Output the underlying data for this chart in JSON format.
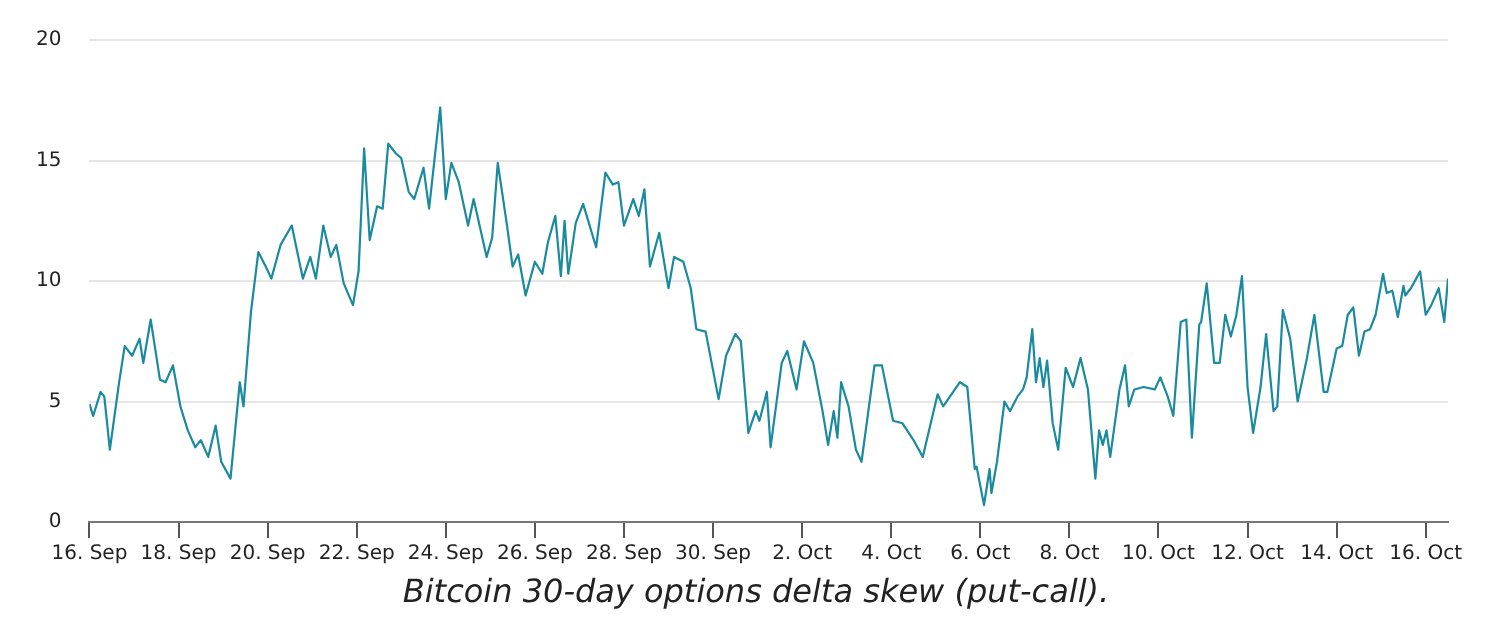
{
  "chart_data": {
    "type": "line",
    "annotations": [
      "Bitcoin 30-day options delta skew (put-call)."
    ],
    "xlim": [
      "--09-16T00:00",
      "--10-16T12:00"
    ],
    "xticks": [
      {
        "value": "--09-16T00:00",
        "label": "16. Sep"
      },
      {
        "value": "--09-18T00:00",
        "label": "18. Sep"
      },
      {
        "value": "--09-20T00:00",
        "label": "20. Sep"
      },
      {
        "value": "--09-22T00:00",
        "label": "22. Sep"
      },
      {
        "value": "--09-24T00:00",
        "label": "24. Sep"
      },
      {
        "value": "--09-26T00:00",
        "label": "26. Sep"
      },
      {
        "value": "--09-28T00:00",
        "label": "28. Sep"
      },
      {
        "value": "--09-30T00:00",
        "label": "30. Sep"
      },
      {
        "value": "--10-02T00:00",
        "label": "2. Oct"
      },
      {
        "value": "--10-04T00:00",
        "label": "4. Oct"
      },
      {
        "value": "--10-06T00:00",
        "label": "6. Oct"
      },
      {
        "value": "--10-08T00:00",
        "label": "8. Oct"
      },
      {
        "value": "--10-10T00:00",
        "label": "10. Oct"
      },
      {
        "value": "--10-12T00:00",
        "label": "12. Oct"
      },
      {
        "value": "--10-14T00:00",
        "label": "14. Oct"
      },
      {
        "value": "--10-16T00:00",
        "label": "16. Oct"
      }
    ],
    "ylim": [
      0,
      20
    ],
    "yticks": [
      0,
      5,
      10,
      15,
      20
    ],
    "grid": "y",
    "legend": false,
    "series": [
      {
        "color": "#1a8a9e",
        "x": [
          "--09-16T00:00",
          "--09-16T02:00",
          "--09-16T06:00",
          "--09-16T08:00",
          "--09-16T11:00",
          "--09-16T16:00",
          "--09-16T19:00",
          "--09-16T23:00",
          "--09-17T03:00",
          "--09-17T05:00",
          "--09-17T09:00",
          "--09-17T14:00",
          "--09-17T17:00",
          "--09-17T21:00",
          "--09-18T01:00",
          "--09-18T05:00",
          "--09-18T09:00",
          "--09-18T12:00",
          "--09-18T16:00",
          "--09-18T20:00",
          "--09-18T23:00",
          "--09-19T04:00",
          "--09-19T09:00",
          "--09-19T11:00",
          "--09-19T15:00",
          "--09-19T19:00",
          "--09-19T23:00",
          "--09-20T02:00",
          "--09-20T07:00",
          "--09-20T13:00",
          "--09-20T19:00",
          "--09-20T23:00",
          "--09-21T02:00",
          "--09-21T06:00",
          "--09-21T10:00",
          "--09-21T13:00",
          "--09-21T17:00",
          "--09-21T22:00",
          "--09-22T01:00",
          "--09-22T04:00",
          "--09-22T07:00",
          "--09-22T11:00",
          "--09-22T14:00",
          "--09-22T17:00",
          "--09-22T21:00",
          "--09-23T00:00",
          "--09-23T04:00",
          "--09-23T07:00",
          "--09-23T12:00",
          "--09-23T15:00",
          "--09-23T21:00",
          "--09-24T00:00",
          "--09-24T03:00",
          "--09-24T07:00",
          "--09-24T12:00",
          "--09-24T15:00",
          "--09-24T22:00",
          "--09-25T01:00",
          "--09-25T04:00",
          "--09-25T09:00",
          "--09-25T12:00",
          "--09-25T15:00",
          "--09-25T19:00",
          "--09-26T00:00",
          "--09-26T04:00",
          "--09-26T07:00",
          "--09-26T11:00",
          "--09-26T14:00",
          "--09-26T16:00",
          "--09-26T18:00",
          "--09-26T22:00",
          "--09-27T02:00",
          "--09-27T09:00",
          "--09-27T14:00",
          "--09-27T18:00",
          "--09-27T21:00",
          "--09-28T00:00",
          "--09-28T05:00",
          "--09-28T08:00",
          "--09-28T11:00",
          "--09-28T14:00",
          "--09-28T19:00",
          "--09-29T00:00",
          "--09-29T03:00",
          "--09-29T08:00",
          "--09-29T12:00",
          "--09-29T15:00",
          "--09-29T20:00",
          "--09-30T03:00",
          "--09-30T07:00",
          "--09-30T12:00",
          "--09-30T15:00",
          "--09-30T19:00",
          "--09-30T23:00",
          "--10-01T01:00",
          "--10-01T05:00",
          "--10-01T07:00",
          "--10-01T13:00",
          "--10-01T16:00",
          "--10-01T21:00",
          "--10-02T01:00",
          "--10-02T06:00",
          "--10-02T11:00",
          "--10-02T14:00",
          "--10-02T17:00",
          "--10-02T19:00",
          "--10-02T21:00",
          "--10-03T01:00",
          "--10-03T05:00",
          "--10-03T08:00",
          "--10-03T15:00",
          "--10-03T19:00",
          "--10-04T01:00",
          "--10-04T06:00",
          "--10-04T12:00",
          "--10-04T17:00",
          "--10-05T01:00",
          "--10-05T04:00",
          "--10-05T13:00",
          "--10-05T17:00",
          "--10-05T21:00",
          "--10-05T22:00",
          "--10-06T02:00",
          "--10-06T05:00",
          "--10-06T06:00",
          "--10-06T09:00",
          "--10-06T13:00",
          "--10-06T16:00",
          "--10-06T20:00",
          "--10-06T23:00",
          "--10-07T01:00",
          "--10-07T04:00",
          "--10-07T06:00",
          "--10-07T08:00",
          "--10-07T10:00",
          "--10-07T12:00",
          "--10-07T15:00",
          "--10-07T18:00",
          "--10-07T22:00",
          "--10-08T02:00",
          "--10-08T06:00",
          "--10-08T10:00",
          "--10-08T14:00",
          "--10-08T16:00",
          "--10-08T18:00",
          "--10-08T20:00",
          "--10-08T22:00",
          "--10-09T03:00",
          "--10-09T06:00",
          "--10-09T08:00",
          "--10-09T11:00",
          "--10-09T16:00",
          "--10-09T22:00",
          "--10-10T01:00",
          "--10-10T05:00",
          "--10-10T08:00",
          "--10-10T12:00",
          "--10-10T15:00",
          "--10-10T18:00",
          "--10-10T22:00",
          "--10-10T23:00",
          "--10-11T02:00",
          "--10-11T06:00",
          "--10-11T09:00",
          "--10-11T12:00",
          "--10-11T15:00",
          "--10-11T18:00",
          "--10-11T21:00",
          "--10-12T00:00",
          "--10-12T03:00",
          "--10-12T07:00",
          "--10-12T10:00",
          "--10-12T14:00",
          "--10-12T16:00",
          "--10-12T19:00",
          "--10-12T23:00",
          "--10-13T03:00",
          "--10-13T08:00",
          "--10-13T12:00",
          "--10-13T17:00",
          "--10-13T19:00",
          "--10-14T00:00",
          "--10-14T03:00",
          "--10-14T06:00",
          "--10-14T09:00",
          "--10-14T12:00",
          "--10-14T15:00",
          "--10-14T18:00",
          "--10-14T21:00",
          "--10-15T01:00",
          "--10-15T03:00",
          "--10-15T06:00",
          "--10-15T09:00",
          "--10-15T12:00",
          "--10-15T13:00",
          "--10-15T16:00",
          "--10-15T21:00",
          "--10-16T00:00",
          "--10-16T03:00",
          "--10-16T07:00",
          "--10-16T10:00",
          "--10-16T12:00"
        ],
        "values": [
          4.9,
          4.4,
          5.4,
          5.2,
          3.0,
          5.8,
          7.3,
          6.9,
          7.6,
          6.6,
          8.4,
          5.9,
          5.8,
          6.5,
          4.8,
          3.8,
          3.1,
          3.4,
          2.7,
          4.0,
          2.5,
          1.8,
          5.8,
          4.8,
          8.7,
          11.2,
          10.6,
          10.1,
          11.5,
          12.3,
          10.1,
          11.0,
          10.1,
          12.3,
          11.0,
          11.5,
          9.9,
          9.0,
          10.4,
          15.5,
          11.7,
          13.1,
          13.0,
          15.7,
          15.3,
          15.1,
          13.7,
          13.4,
          14.7,
          13.0,
          17.2,
          13.4,
          14.9,
          14.1,
          12.3,
          13.4,
          11.0,
          11.8,
          14.9,
          12.3,
          10.6,
          11.1,
          9.4,
          10.8,
          10.3,
          11.6,
          12.7,
          10.2,
          12.5,
          10.3,
          12.4,
          13.2,
          11.4,
          14.5,
          14.0,
          14.1,
          12.3,
          13.4,
          12.7,
          13.8,
          10.6,
          12.0,
          9.7,
          11.0,
          10.8,
          9.7,
          8.0,
          7.9,
          5.1,
          6.9,
          7.8,
          7.5,
          3.7,
          4.6,
          4.2,
          5.4,
          3.1,
          6.6,
          7.1,
          5.5,
          7.5,
          6.6,
          4.6,
          3.2,
          4.6,
          3.5,
          5.8,
          4.8,
          3.0,
          2.5,
          6.5,
          6.5,
          4.2,
          4.1,
          3.4,
          2.7,
          5.3,
          4.8,
          5.8,
          5.6,
          2.2,
          2.3,
          0.7,
          2.2,
          1.2,
          2.5,
          5.0,
          4.6,
          5.2,
          5.5,
          6.0,
          8.0,
          5.8,
          6.8,
          5.6,
          6.7,
          4.1,
          3.0,
          6.4,
          5.6,
          6.8,
          5.5,
          1.8,
          3.8,
          3.2,
          3.8,
          2.7,
          5.5,
          6.5,
          4.8,
          5.5,
          5.6,
          5.5,
          6.0,
          5.2,
          4.4,
          8.3,
          8.4,
          3.5,
          8.2,
          8.3,
          9.9,
          6.6,
          6.6,
          8.6,
          7.7,
          8.6,
          10.2,
          5.6,
          3.7,
          5.6,
          7.8,
          4.6,
          4.8,
          8.8,
          7.6,
          5.0,
          6.8,
          8.6,
          5.4,
          5.4,
          7.2,
          7.3,
          8.6,
          8.9,
          6.9,
          7.9,
          8.0,
          8.6,
          10.3,
          9.5,
          9.6,
          8.5,
          9.8,
          9.4,
          9.7,
          10.4,
          8.6,
          9.0,
          9.7,
          8.3,
          10.1
        ]
      }
    ]
  }
}
